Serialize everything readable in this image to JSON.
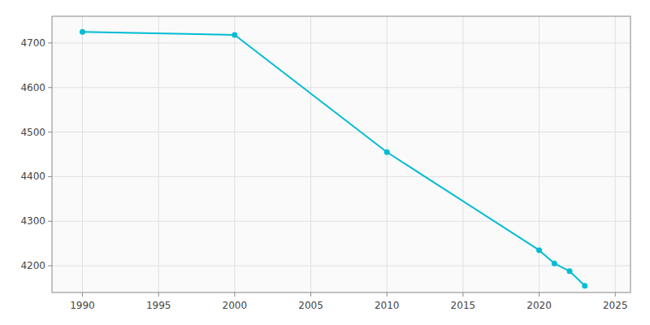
{
  "chart_data": {
    "type": "line",
    "x": [
      1990,
      2000,
      2010,
      2020,
      2021,
      2022,
      2023
    ],
    "values": [
      4725,
      4718,
      4455,
      4235,
      4205,
      4188,
      4155
    ],
    "color": "#00bcd4",
    "marker": "circle",
    "xlim": [
      1988,
      2026
    ],
    "ylim": [
      4140,
      4760
    ],
    "xticks": [
      1990,
      1995,
      2000,
      2005,
      2010,
      2015,
      2020,
      2025
    ],
    "yticks": [
      4200,
      4300,
      4400,
      4500,
      4600,
      4700
    ],
    "grid": true
  }
}
